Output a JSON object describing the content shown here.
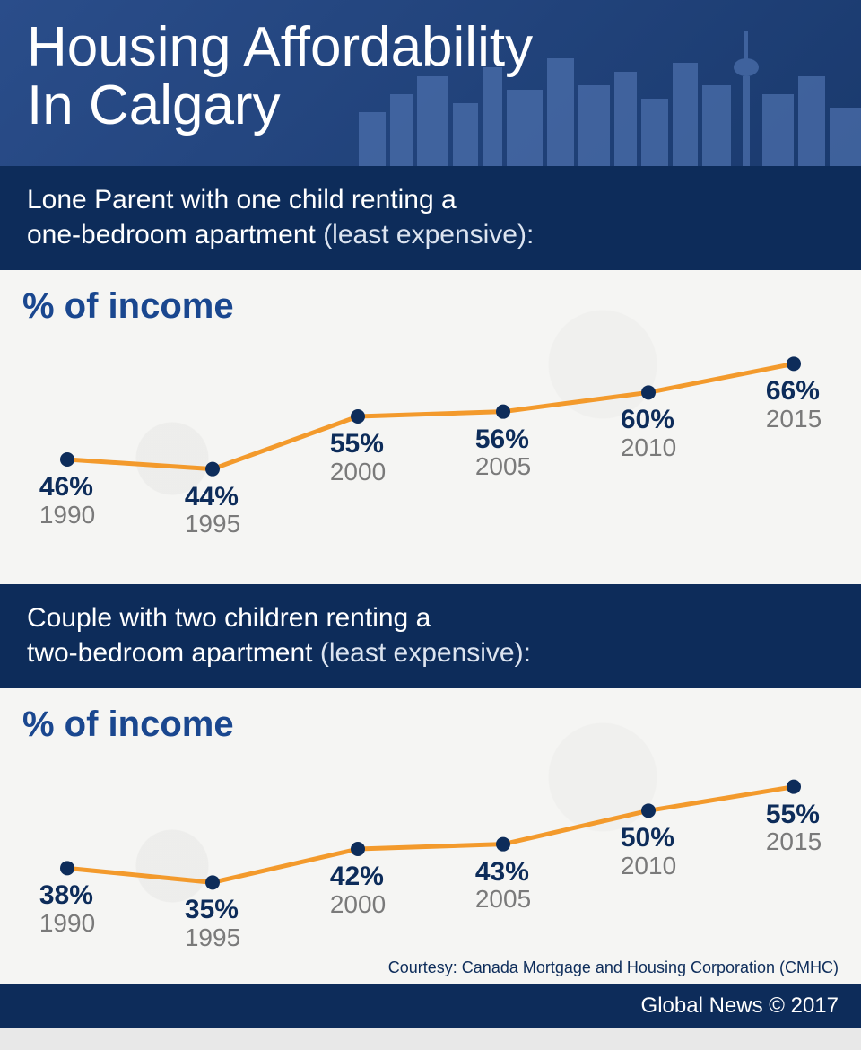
{
  "header": {
    "title_line1": "Housing Affordability",
    "title_line2": "In Calgary"
  },
  "section1": {
    "sub_strong": "Lone Parent with one child renting a",
    "sub_strong2": "one-bedroom apartment",
    "sub_paren": " (least expensive):",
    "chart": {
      "type": "line",
      "title": "% of income",
      "line_color": "#f39a2c",
      "line_width": 5,
      "marker_color": "#0d2c5a",
      "marker_radius": 8,
      "value_color": "#0d2c5a",
      "year_color": "#7a7a7a",
      "background_color": "#f5f5f3",
      "ylim": [
        40,
        70
      ],
      "points": [
        {
          "year": "1990",
          "value": 46,
          "label": "46%",
          "label_pos": "below"
        },
        {
          "year": "1995",
          "value": 44,
          "label": "44%",
          "label_pos": "below"
        },
        {
          "year": "2000",
          "value": 55,
          "label": "55%",
          "label_pos": "below"
        },
        {
          "year": "2005",
          "value": 56,
          "label": "56%",
          "label_pos": "below"
        },
        {
          "year": "2010",
          "value": 60,
          "label": "60%",
          "label_pos": "below"
        },
        {
          "year": "2015",
          "value": 66,
          "label": "66%",
          "label_pos": "below"
        }
      ]
    }
  },
  "section2": {
    "sub_strong": "Couple with two children renting a",
    "sub_strong2": "two-bedroom apartment",
    "sub_paren": " (least expensive):",
    "chart": {
      "type": "line",
      "title": "% of income",
      "line_color": "#f39a2c",
      "line_width": 5,
      "marker_color": "#0d2c5a",
      "marker_radius": 8,
      "value_color": "#0d2c5a",
      "year_color": "#7a7a7a",
      "background_color": "#f5f5f3",
      "ylim": [
        30,
        60
      ],
      "points": [
        {
          "year": "1990",
          "value": 38,
          "label": "38%",
          "label_pos": "below"
        },
        {
          "year": "1995",
          "value": 35,
          "label": "35%",
          "label_pos": "below"
        },
        {
          "year": "2000",
          "value": 42,
          "label": "42%",
          "label_pos": "below"
        },
        {
          "year": "2005",
          "value": 43,
          "label": "43%",
          "label_pos": "below"
        },
        {
          "year": "2010",
          "value": 50,
          "label": "50%",
          "label_pos": "below"
        },
        {
          "year": "2015",
          "value": 55,
          "label": "55%",
          "label_pos": "below"
        }
      ]
    },
    "courtesy": "Courtesy: Canada Mortgage and Housing Corporation (CMHC)"
  },
  "footer": {
    "text": "Global News © 2017"
  },
  "skyline_color": "#2a4d8a"
}
